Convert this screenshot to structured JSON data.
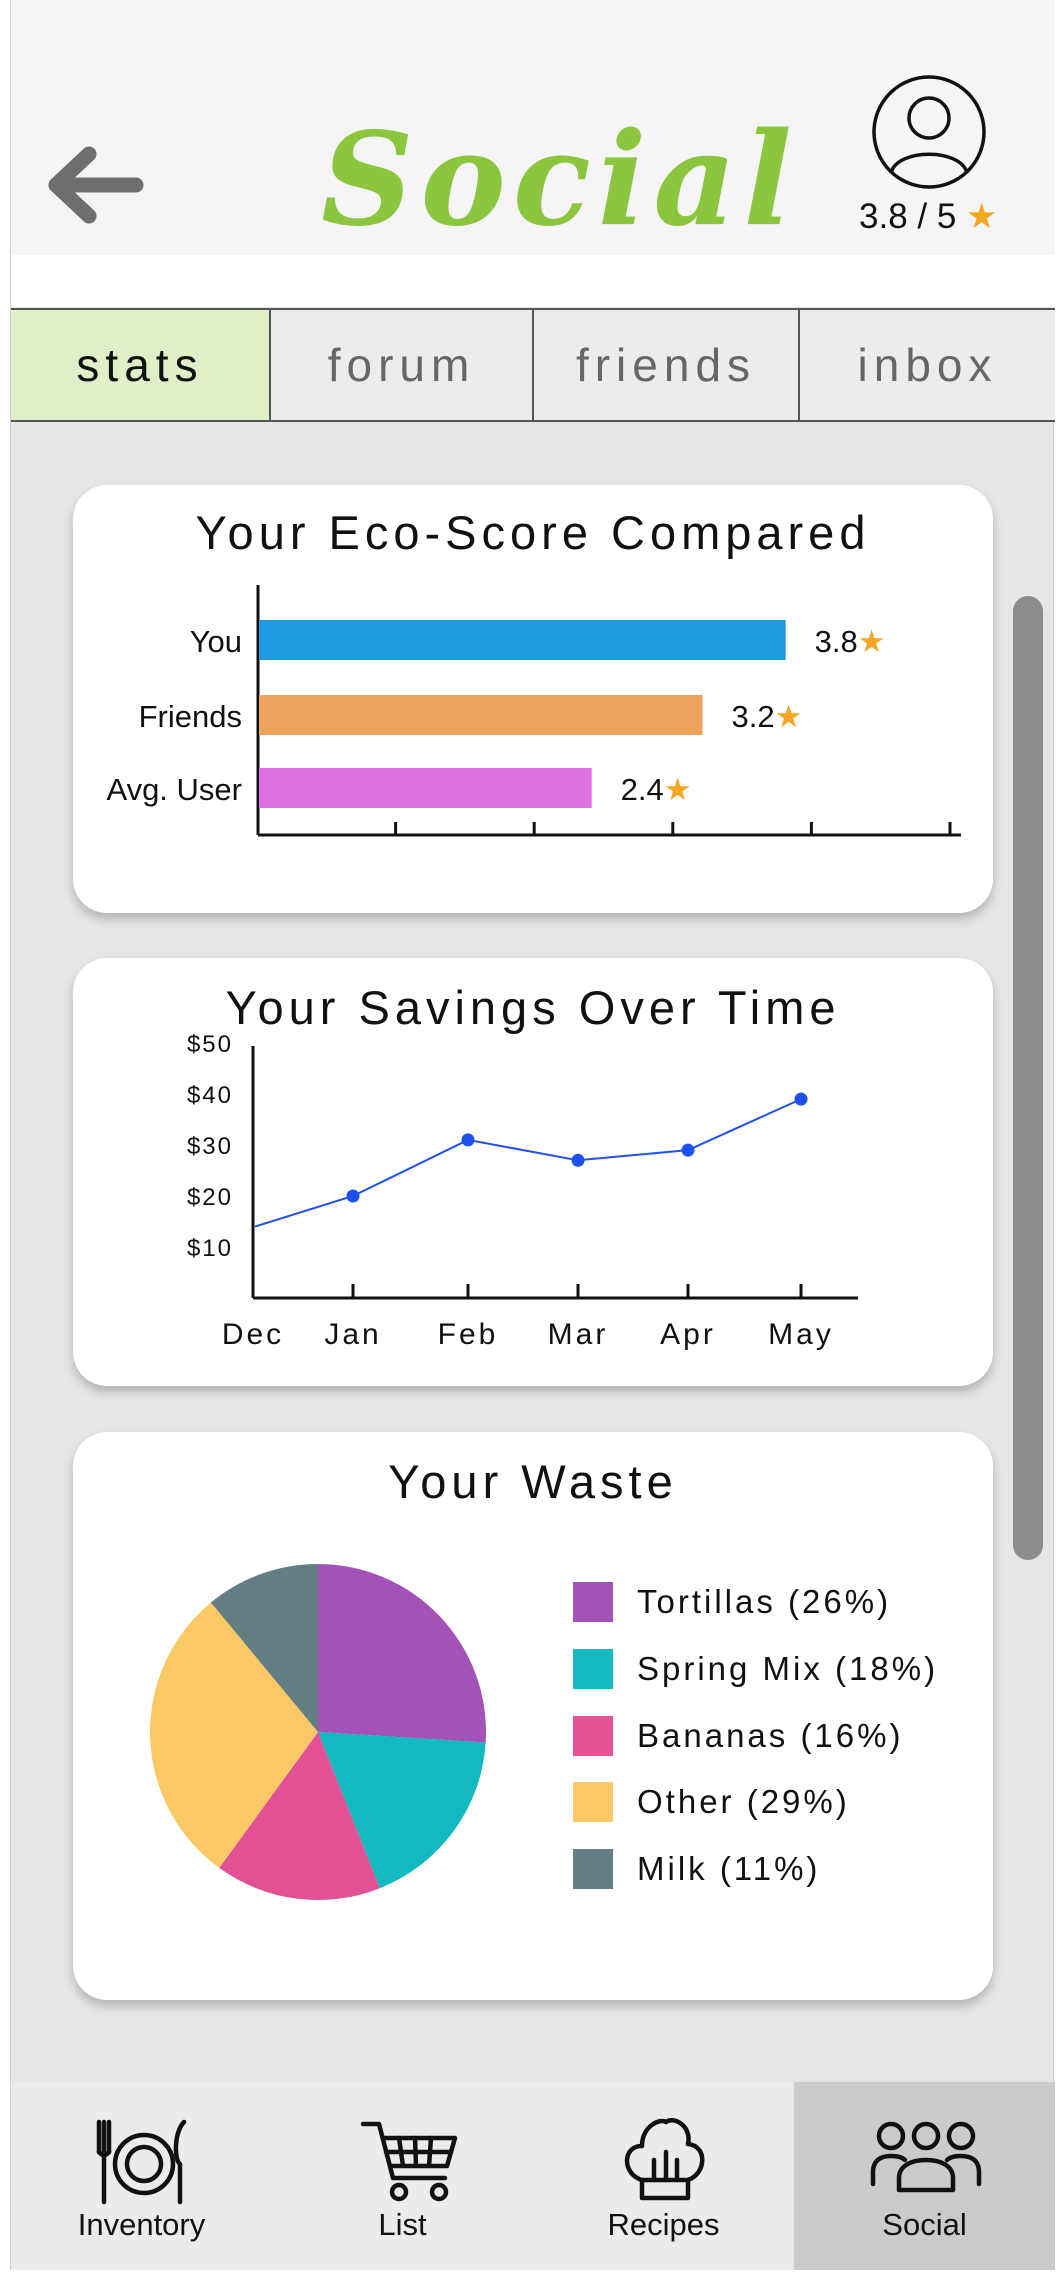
{
  "header": {
    "title": "Social",
    "rating_value": "3.8 / 5",
    "rating_star": "★",
    "colors": {
      "title": "#8cc63f",
      "star": "#f5a623"
    }
  },
  "tabs": [
    {
      "label": "stats",
      "active": true
    },
    {
      "label": "forum",
      "active": false
    },
    {
      "label": "friends",
      "active": false
    },
    {
      "label": "inbox",
      "active": false
    }
  ],
  "cards": {
    "eco_score": {
      "title": "Your Eco-Score Compared"
    },
    "savings": {
      "title": "Your Savings Over Time"
    },
    "waste": {
      "title": "Your Waste"
    }
  },
  "chart_data": [
    {
      "type": "bar",
      "orientation": "horizontal",
      "title": "Your Eco-Score Compared",
      "categories": [
        "You",
        "Friends",
        "Avg. User"
      ],
      "values": [
        3.8,
        3.2,
        2.4
      ],
      "value_labels": [
        "3.8★",
        "3.2★",
        "2.4★"
      ],
      "colors": [
        "#1e9ae0",
        "#eda25c",
        "#db70e0"
      ],
      "xlim": [
        0,
        5
      ],
      "grid": false
    },
    {
      "type": "line",
      "title": "Your Savings Over Time",
      "x": [
        "Dec",
        "Jan",
        "Feb",
        "Mar",
        "Apr",
        "May"
      ],
      "y": [
        14,
        20,
        31,
        27,
        29,
        39
      ],
      "ylim": [
        0,
        50
      ],
      "yticks": [
        "$10",
        "$20",
        "$30",
        "$40",
        "$50"
      ],
      "line_color": "#1e50f0",
      "grid": false
    },
    {
      "type": "pie",
      "title": "Your Waste",
      "labels": [
        "Tortillas (26%)",
        "Spring Mix (18%)",
        "Bananas (16%)",
        "Other (29%)",
        "Milk (11%)"
      ],
      "values": [
        26,
        18,
        16,
        29,
        11
      ],
      "colors": [
        "#a352b8",
        "#12b9c0",
        "#e25193",
        "#fac865",
        "#627e83"
      ],
      "legend_position": "right"
    }
  ],
  "bottom_nav": [
    {
      "label": "Inventory",
      "icon": "plate-cutlery-icon",
      "active": false
    },
    {
      "label": "List",
      "icon": "shopping-cart-icon",
      "active": false
    },
    {
      "label": "Recipes",
      "icon": "chef-hat-icon",
      "active": false
    },
    {
      "label": "Social",
      "icon": "people-group-icon",
      "active": true
    }
  ]
}
